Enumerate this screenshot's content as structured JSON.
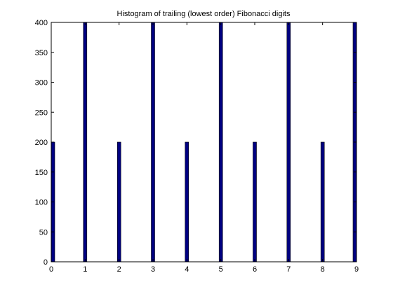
{
  "window": {
    "background": "#ffffff"
  },
  "chart_data": {
    "type": "bar",
    "title": "Histogram of trailing (lowest order) Fibonacci digits",
    "xlabel": "",
    "ylabel": "",
    "x": [
      0,
      1,
      2,
      3,
      4,
      5,
      6,
      7,
      8,
      9
    ],
    "values": [
      200,
      400,
      200,
      400,
      200,
      400,
      200,
      400,
      200,
      400
    ],
    "xlim": [
      0,
      9
    ],
    "ylim": [
      0,
      400
    ],
    "xticks": [
      "0",
      "1",
      "2",
      "3",
      "4",
      "5",
      "6",
      "7",
      "8",
      "9"
    ],
    "yticks": [
      "0",
      "50",
      "100",
      "150",
      "200",
      "250",
      "300",
      "350",
      "400"
    ],
    "grid": false,
    "bar_color": "#000080",
    "bar_edge_color": "#000000"
  }
}
